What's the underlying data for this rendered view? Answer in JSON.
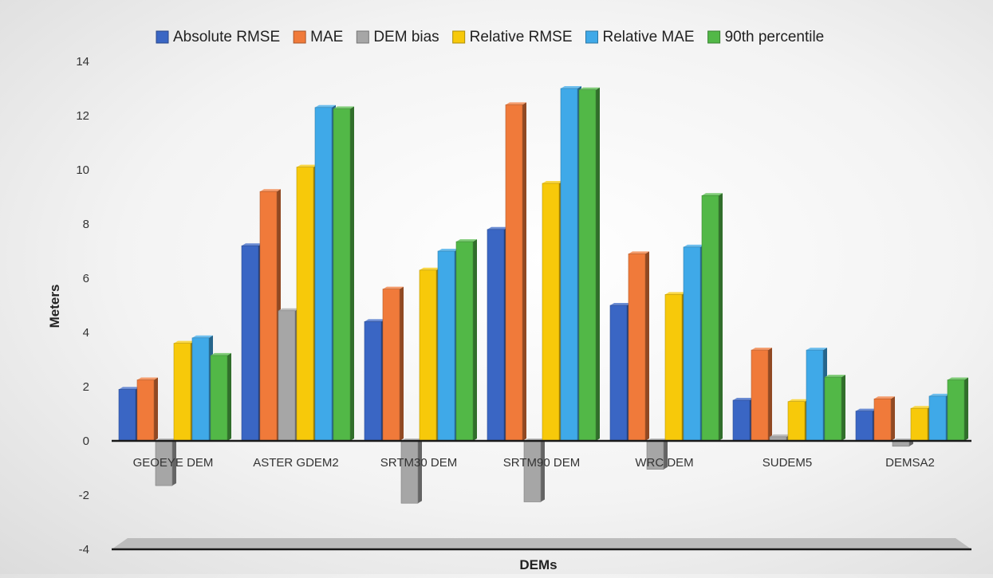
{
  "chart_data": {
    "type": "bar",
    "title": "",
    "xlabel": "DEMs",
    "ylabel": "Meters",
    "ylim": [
      -4,
      14
    ],
    "yticks": [
      -4,
      -2,
      0,
      2,
      4,
      6,
      8,
      10,
      12,
      14
    ],
    "categories": [
      "GEOEYE DEM",
      "ASTER GDEM2",
      "SRTM30 DEM",
      "SRTM90 DEM",
      "WRC DEM",
      "SUDEM5",
      "DEMSA2"
    ],
    "legend_position": "top",
    "grid": false,
    "series": [
      {
        "name": "Absolute RMSE",
        "color": "#3a66c4",
        "values": [
          1.9,
          7.2,
          4.4,
          7.8,
          5.0,
          1.5,
          1.1
        ]
      },
      {
        "name": "MAE",
        "color": "#f07a3a",
        "values": [
          2.25,
          9.2,
          5.6,
          12.4,
          6.9,
          3.35,
          1.55
        ]
      },
      {
        "name": "DEM bias",
        "color": "#a6a6a6",
        "values": [
          -1.65,
          4.8,
          -2.3,
          -2.25,
          -1.05,
          0.15,
          -0.2
        ]
      },
      {
        "name": "Relative RMSE",
        "color": "#f7c90a",
        "values": [
          3.6,
          10.1,
          6.3,
          9.5,
          5.4,
          1.45,
          1.2
        ]
      },
      {
        "name": "Relative MAE",
        "color": "#3fa9e8",
        "values": [
          3.8,
          12.3,
          7.0,
          13.0,
          7.15,
          3.35,
          1.65
        ]
      },
      {
        "name": "90th percentile",
        "color": "#52b847",
        "values": [
          3.15,
          12.25,
          7.35,
          12.95,
          9.05,
          2.35,
          2.25
        ]
      }
    ]
  }
}
